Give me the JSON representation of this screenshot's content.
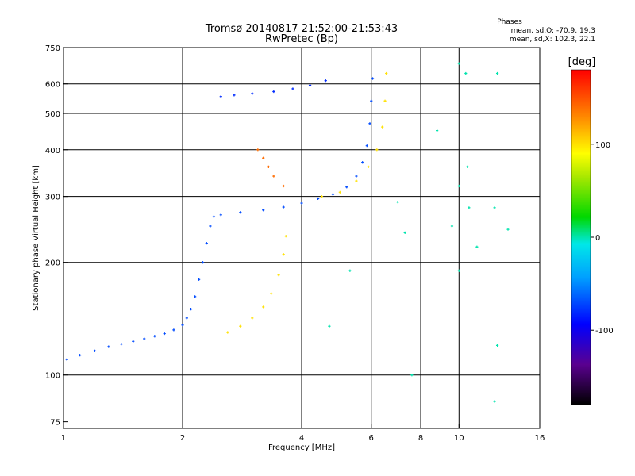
{
  "chart_data": {
    "type": "scatter",
    "title": "Tromsø 20140817 21:52:00-21:53:43",
    "subtitle": "RwPretec (Bp)",
    "xlabel": "Frequency [MHz]",
    "ylabel": "Stationary phase Virtual Height [km]",
    "x_scale": "log",
    "y_scale": "log",
    "xlim": [
      1,
      16
    ],
    "ylim": [
      72,
      750
    ],
    "x_ticks": [
      1,
      2,
      4,
      6,
      8,
      10,
      16
    ],
    "y_ticks": [
      75,
      100,
      200,
      300,
      400,
      500,
      600,
      750
    ],
    "x_gridlines": [
      2,
      4,
      6,
      8,
      10
    ],
    "y_gridlines": [
      100,
      200,
      300,
      400,
      500,
      600
    ],
    "grid": true,
    "phase_stats": {
      "heading": "Phases",
      "line_o": "mean, sd,O: -70.9, 19.3",
      "line_x": "mean, sd,X: 102.3, 22.1"
    },
    "colorbar": {
      "label": "[deg]",
      "range": [
        -180,
        180
      ],
      "ticks": [
        100,
        0,
        -100
      ]
    },
    "series": [
      {
        "trace": "O-mode F-region trace",
        "color_phase_deg": -70,
        "points": [
          [
            1.02,
            110
          ],
          [
            1.1,
            113
          ],
          [
            1.2,
            116
          ],
          [
            1.3,
            119
          ],
          [
            1.4,
            121
          ],
          [
            1.5,
            123
          ],
          [
            1.6,
            125
          ],
          [
            1.7,
            127
          ],
          [
            1.8,
            129
          ],
          [
            1.9,
            132
          ],
          [
            2.0,
            136
          ],
          [
            2.05,
            142
          ],
          [
            2.1,
            150
          ],
          [
            2.15,
            162
          ],
          [
            2.2,
            180
          ],
          [
            2.25,
            200
          ],
          [
            2.3,
            225
          ],
          [
            2.35,
            250
          ],
          [
            2.4,
            265
          ],
          [
            2.5,
            268
          ],
          [
            2.8,
            272
          ],
          [
            3.2,
            276
          ],
          [
            3.6,
            281
          ],
          [
            4.0,
            288
          ],
          [
            4.4,
            296
          ],
          [
            4.8,
            304
          ],
          [
            5.2,
            318
          ],
          [
            5.5,
            340
          ],
          [
            5.7,
            370
          ],
          [
            5.85,
            410
          ],
          [
            5.95,
            470
          ],
          [
            6.0,
            540
          ],
          [
            6.05,
            620
          ]
        ]
      },
      {
        "trace": "X-mode F-region trace",
        "color_phase_deg": 100,
        "points": [
          [
            2.6,
            130
          ],
          [
            2.8,
            135
          ],
          [
            3.0,
            142
          ],
          [
            3.2,
            152
          ],
          [
            3.35,
            165
          ],
          [
            3.5,
            185
          ],
          [
            3.6,
            210
          ],
          [
            3.65,
            235
          ],
          [
            4.5,
            300
          ],
          [
            5.0,
            308
          ],
          [
            5.5,
            330
          ],
          [
            5.9,
            360
          ],
          [
            6.2,
            400
          ],
          [
            6.4,
            460
          ],
          [
            6.5,
            540
          ],
          [
            6.55,
            640
          ]
        ]
      },
      {
        "trace": "O-mode high-altitude echo",
        "color_phase_deg": -80,
        "points": [
          [
            2.5,
            555
          ],
          [
            2.7,
            560
          ],
          [
            3.0,
            565
          ],
          [
            3.4,
            572
          ],
          [
            3.8,
            582
          ],
          [
            4.2,
            595
          ],
          [
            4.6,
            612
          ]
        ]
      },
      {
        "trace": "X-mode oblique echo",
        "color_phase_deg": 140,
        "points": [
          [
            3.1,
            400
          ],
          [
            3.2,
            380
          ],
          [
            3.3,
            360
          ],
          [
            3.4,
            340
          ],
          [
            3.6,
            320
          ]
        ]
      },
      {
        "trace": "scattered noise",
        "color_phase_deg": 0,
        "points": [
          [
            7.3,
            240
          ],
          [
            7.0,
            290
          ],
          [
            7.6,
            100
          ],
          [
            8.8,
            450
          ],
          [
            9.6,
            250
          ],
          [
            10.0,
            680
          ],
          [
            10.0,
            320
          ],
          [
            10.0,
            190
          ],
          [
            10.5,
            360
          ],
          [
            10.6,
            280
          ],
          [
            11.1,
            220
          ],
          [
            12.5,
            640
          ],
          [
            12.3,
            280
          ],
          [
            13.3,
            245
          ],
          [
            4.7,
            135
          ],
          [
            5.3,
            190
          ],
          [
            10.4,
            640
          ],
          [
            12.5,
            120
          ],
          [
            12.3,
            85
          ]
        ]
      }
    ]
  }
}
